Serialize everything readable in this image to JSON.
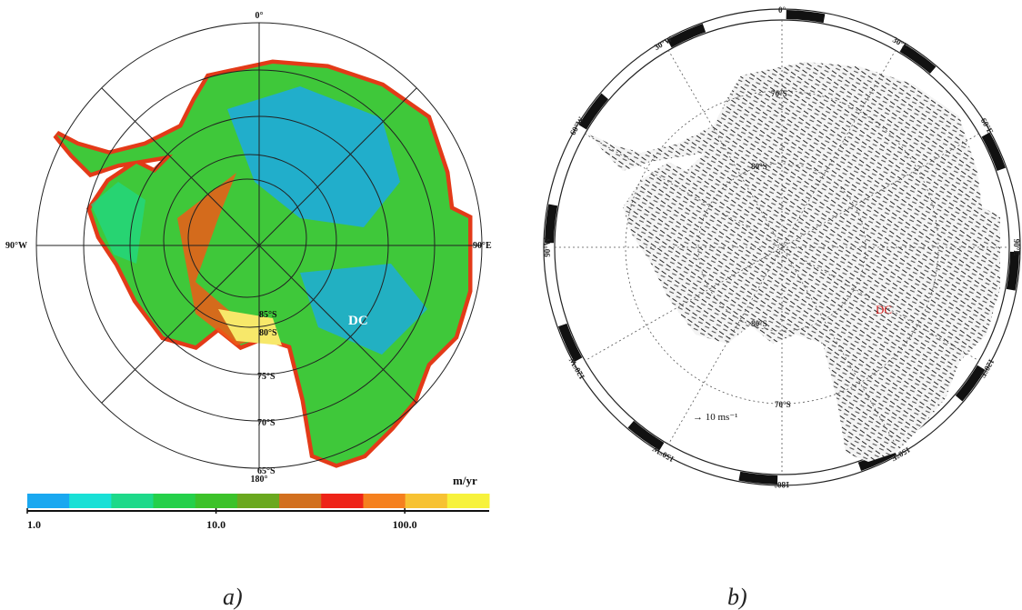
{
  "panel_a": {
    "labels": {
      "north": "0°",
      "west": "90°W",
      "east": "90°E",
      "south": "180°",
      "dc": "DC",
      "lat85": "85°S",
      "lat80": "80°S",
      "lat75": "75°S",
      "lat70": "70°S",
      "lat65": "65°S"
    },
    "colorbar": {
      "unit": "m/yr",
      "log": true,
      "lim": [
        1,
        280
      ],
      "colors": [
        "#1aa8f0",
        "#19e0d6",
        "#1ed98a",
        "#25d04a",
        "#3cc22a",
        "#6aa81f",
        "#d2701f",
        "#ee2418",
        "#f5801e",
        "#f7c233",
        "#f7f23c"
      ],
      "ticks": [
        {
          "value": 1,
          "label": "1.0"
        },
        {
          "value": 10,
          "label": "10.0"
        },
        {
          "value": 100,
          "label": "100.0"
        }
      ]
    },
    "caption": "a)"
  },
  "panel_b": {
    "labels": {
      "lon0": "0°",
      "lon30e": "30°E",
      "lon60e": "60°E",
      "lon90e": "90°E",
      "lon120e": "120°E",
      "lon150e": "150°E",
      "lon180": "180°",
      "lon150w": "150°W",
      "lon120w": "120°W",
      "lon90w": "90°W",
      "lon60w": "60°W",
      "lon30w": "30°W",
      "lat70a": "70°S",
      "lat70b": "70°S",
      "lat80a": "80°S",
      "lat80b": "80°S",
      "dc": "DC",
      "scale": "→ 10 ms⁻¹"
    },
    "caption": "b)"
  }
}
